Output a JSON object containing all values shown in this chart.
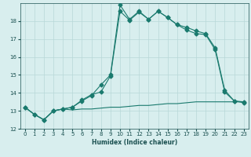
{
  "xlabel": "Humidex (Indice chaleur)",
  "bg_color": "#d8eeee",
  "line_color": "#1a7a6e",
  "grid_color": "#b8d8d8",
  "xlim": [
    -0.5,
    23.5
  ],
  "ylim": [
    12,
    19
  ],
  "yticks": [
    12,
    13,
    14,
    15,
    16,
    17,
    18
  ],
  "xticks": [
    0,
    1,
    2,
    3,
    4,
    5,
    6,
    7,
    8,
    9,
    10,
    11,
    12,
    13,
    14,
    15,
    16,
    17,
    18,
    19,
    20,
    21,
    22,
    23
  ],
  "line1_x": [
    0,
    1,
    2,
    3,
    4,
    5,
    6,
    7,
    8,
    9,
    10,
    11,
    12,
    13,
    14,
    15,
    16,
    17,
    18,
    19,
    20,
    21,
    22,
    23
  ],
  "line1_y": [
    13.2,
    12.8,
    12.5,
    13.0,
    13.1,
    13.05,
    13.1,
    13.1,
    13.15,
    13.2,
    13.2,
    13.25,
    13.3,
    13.3,
    13.35,
    13.4,
    13.4,
    13.45,
    13.5,
    13.5,
    13.5,
    13.5,
    13.5,
    13.5
  ],
  "line2_x": [
    0,
    1,
    2,
    3,
    4,
    5,
    6,
    7,
    8,
    9,
    10,
    11,
    12,
    13,
    14,
    15,
    16,
    17,
    18,
    19,
    20,
    21,
    22,
    23
  ],
  "line2_y": [
    13.2,
    12.8,
    12.5,
    13.0,
    13.1,
    13.2,
    13.55,
    13.85,
    14.45,
    15.0,
    18.9,
    18.1,
    18.55,
    18.1,
    18.55,
    18.2,
    17.8,
    17.65,
    17.45,
    17.3,
    16.5,
    14.15,
    13.55,
    13.5
  ],
  "line3_x": [
    0,
    1,
    2,
    3,
    4,
    5,
    6,
    7,
    8,
    9,
    10,
    11,
    12,
    13,
    14,
    15,
    16,
    17,
    18,
    19,
    20,
    21,
    22,
    23
  ],
  "line3_y": [
    13.2,
    12.8,
    12.5,
    13.0,
    13.1,
    13.2,
    13.6,
    13.9,
    14.05,
    14.95,
    18.55,
    18.05,
    18.5,
    18.1,
    18.55,
    18.2,
    17.8,
    17.5,
    17.3,
    17.25,
    16.4,
    14.05,
    13.55,
    13.45
  ],
  "marker": "D",
  "markersize": 2.5,
  "xlabel_fontsize": 5.5,
  "tick_fontsize": 5
}
